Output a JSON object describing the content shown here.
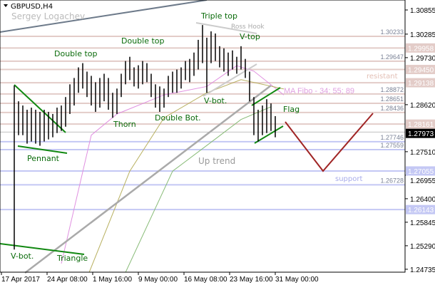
{
  "header": {
    "symbol": "GBPUSD,H4",
    "author": "Sergey Logachev"
  },
  "colors": {
    "resistance": "#e3ccc8",
    "support": "#c4c8f4",
    "bars": "#000000",
    "pattern": "#118811",
    "forecast": "#a02525",
    "trend": "#aaaaaa",
    "ma34": "#e090e0",
    "ma55": "#b8b060",
    "ma89": "#88bb77"
  },
  "chart_data": {
    "type": "bar",
    "title": "GBPUSD,H4",
    "ylim": [
      1.2466,
      1.3108
    ],
    "yticks": [
      "1.30855",
      "1.30285",
      "1.29730",
      "1.28620",
      "1.27510",
      "1.26955",
      "1.26400",
      "1.25845",
      "1.25290",
      "1.24735"
    ],
    "xticks": [
      "17 Apr 2017",
      "24 Apr 08:00",
      "1 May 16:00",
      "9 May 00:00",
      "16 May 08:00",
      "23 May 16:00",
      "31 May 00:00"
    ],
    "current_price": "1.27973",
    "bars_high_low": [
      [
        1.2907,
        1.252
      ],
      [
        1.287,
        1.279
      ],
      [
        1.286,
        1.279
      ],
      [
        1.285,
        1.277
      ],
      [
        1.2855,
        1.2775
      ],
      [
        1.285,
        1.277
      ],
      [
        1.2845,
        1.2765
      ],
      [
        1.285,
        1.2775
      ],
      [
        1.2845,
        1.278
      ],
      [
        1.284,
        1.2785
      ],
      [
        1.2855,
        1.2795
      ],
      [
        1.286,
        1.28
      ],
      [
        1.288,
        1.281
      ],
      [
        1.291,
        1.284
      ],
      [
        1.2925,
        1.286
      ],
      [
        1.295,
        1.289
      ],
      [
        1.296,
        1.29
      ],
      [
        1.294,
        1.288
      ],
      [
        1.293,
        1.286
      ],
      [
        1.2915,
        1.2845
      ],
      [
        1.2925,
        1.2855
      ],
      [
        1.2935,
        1.287
      ],
      [
        1.2925,
        1.285
      ],
      [
        1.289,
        1.2831
      ],
      [
        1.29,
        1.284
      ],
      [
        1.2935,
        1.288
      ],
      [
        1.2965,
        1.291
      ],
      [
        1.2975,
        1.292
      ],
      [
        1.295,
        1.2905
      ],
      [
        1.2955,
        1.29
      ],
      [
        1.2965,
        1.291
      ],
      [
        1.296,
        1.2915
      ],
      [
        1.2935,
        1.288
      ],
      [
        1.291,
        1.2855
      ],
      [
        1.2905,
        1.2845
      ],
      [
        1.29,
        1.2855
      ],
      [
        1.293,
        1.288
      ],
      [
        1.294,
        1.289
      ],
      [
        1.2945,
        1.289
      ],
      [
        1.295,
        1.29
      ],
      [
        1.2965,
        1.292
      ],
      [
        1.297,
        1.2915
      ],
      [
        1.2985,
        1.293
      ],
      [
        1.3015,
        1.2945
      ],
      [
        1.305,
        1.296
      ],
      [
        1.302,
        1.289
      ],
      [
        1.3035,
        1.296
      ],
      [
        1.303,
        1.2965
      ],
      [
        1.3,
        1.295
      ],
      [
        1.2995,
        1.294
      ],
      [
        1.2985,
        1.293
      ],
      [
        1.299,
        1.2945
      ],
      [
        1.2975,
        1.2935
      ],
      [
        1.3,
        1.2945
      ],
      [
        1.297,
        1.2925
      ],
      [
        1.294,
        1.287
      ],
      [
        1.288,
        1.279
      ],
      [
        1.285,
        1.2775
      ],
      [
        1.286,
        1.279
      ],
      [
        1.2875,
        1.2795
      ],
      [
        1.2865,
        1.28
      ],
      [
        1.2835,
        1.2785
      ]
    ],
    "moving_averages": [
      {
        "period": 34,
        "points": [
          [
            11,
            1.2487
          ],
          [
            18,
            1.279
          ],
          [
            24,
            1.284
          ],
          [
            35,
            1.2885
          ],
          [
            45,
            1.2905
          ],
          [
            52,
            1.2954
          ],
          [
            56,
            1.2941
          ],
          [
            63,
            1.2885
          ]
        ]
      },
      {
        "period": 55,
        "points": [
          [
            17.5,
            1.2466
          ],
          [
            27,
            1.2705
          ],
          [
            35,
            1.2831
          ],
          [
            45,
            1.289
          ],
          [
            53,
            1.2921
          ],
          [
            63,
            1.2899
          ]
        ]
      },
      {
        "period": 89,
        "points": [
          [
            26,
            1.2466
          ],
          [
            37,
            1.2705
          ],
          [
            47,
            1.2781
          ],
          [
            53,
            1.2827
          ],
          [
            60,
            1.2857
          ]
        ]
      }
    ],
    "resistance_levels": [
      {
        "price": "1.30233",
        "tag": false
      },
      {
        "price": "1.29958",
        "tag": true
      },
      {
        "price": "1.29647",
        "tag": false
      },
      {
        "price": "1.29450",
        "tag": true
      },
      {
        "price": "1.29138",
        "tag": true
      },
      {
        "price": "1.28872",
        "tag": false
      },
      {
        "price": "1.28651",
        "tag": false
      },
      {
        "price": "1.28436",
        "tag": false
      },
      {
        "price": "1.28161",
        "tag": true
      }
    ],
    "support_levels": [
      {
        "price": "1.27746",
        "tag": false
      },
      {
        "price": "1.27559",
        "tag": false
      },
      {
        "price": "1.27055",
        "tag": true
      },
      {
        "price": "1.26728",
        "tag": false
      },
      {
        "price": "1.26143",
        "tag": true
      }
    ],
    "annotations": {
      "triple_top": "Triple top",
      "ross_hook": "Ross Hook",
      "v_top": "V-top",
      "double_top_1": "Double top",
      "double_top_2": "Double top",
      "double_bot": "Double Bot.",
      "thorn": "Thorn",
      "v_bot_1": "V-bot.",
      "v_bot_2": "V-bot.",
      "pennant": "Pennant",
      "flag": "Flag",
      "up_trend": "Up trend",
      "triangle": "Triangle",
      "ma_fibo": "MA Fibo - 34; 55; 89",
      "resistant": "resistant",
      "support": "support"
    }
  }
}
